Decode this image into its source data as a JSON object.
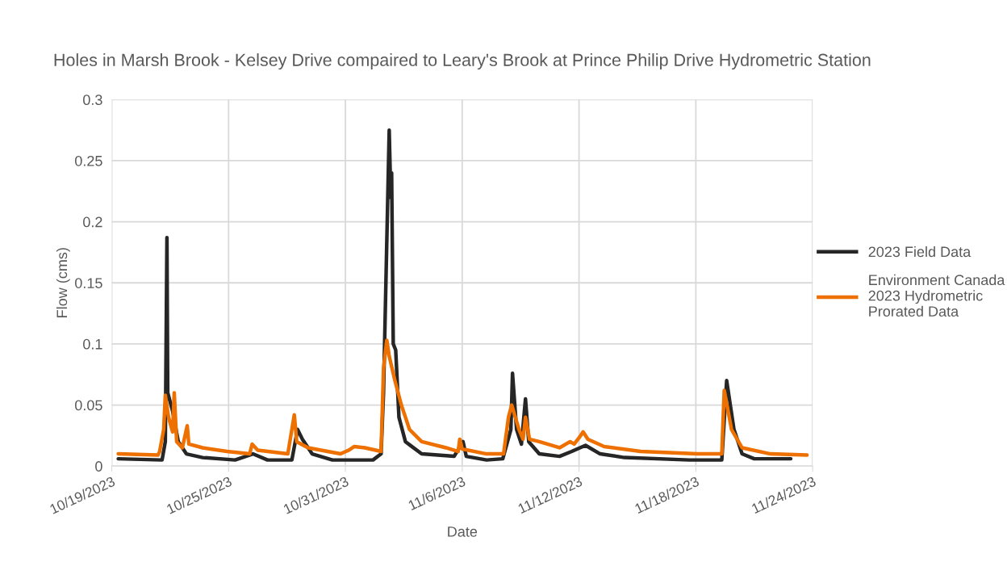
{
  "chart_data": {
    "type": "line",
    "title": "Holes in Marsh Brook - Kelsey Drive compaired to Leary's Brook at Prince Philip Drive Hydrometric Station",
    "xlabel": "Date",
    "ylabel": "Flow (cms)",
    "xlim": [
      "2023-10-19",
      "2023-11-24"
    ],
    "xticks": [
      {
        "value": "2023-10-19",
        "label": "10/19/2023"
      },
      {
        "value": "2023-10-25",
        "label": "10/25/2023"
      },
      {
        "value": "2023-10-31",
        "label": "10/31/2023"
      },
      {
        "value": "2023-11-06",
        "label": "11/6/2023"
      },
      {
        "value": "2023-11-12",
        "label": "11/12/2023"
      },
      {
        "value": "2023-11-18",
        "label": "11/18/2023"
      },
      {
        "value": "2023-11-24",
        "label": "11/24/2023"
      }
    ],
    "ylim": [
      0,
      0.3
    ],
    "yticks": [
      0,
      0.05,
      0.1,
      0.15,
      0.2,
      0.25,
      0.3
    ],
    "grid": true,
    "legend": "right",
    "series": [
      {
        "name": "2023 Field Data",
        "color": "#262626",
        "x": [
          "2023-10-19T08:00",
          "2023-10-21T14:00",
          "2023-10-21T18:00",
          "2023-10-21T20:00",
          "2023-10-21T21:00",
          "2023-10-22T03:00",
          "2023-10-22T10:00",
          "2023-10-22T20:00",
          "2023-10-23T16:00",
          "2023-10-25T08:00",
          "2023-10-26T06:00",
          "2023-10-27T00:00",
          "2023-10-28T06:00",
          "2023-10-28T13:00",
          "2023-10-28T19:00",
          "2023-10-29T07:00",
          "2023-10-30T08:00",
          "2023-11-01T10:00",
          "2023-11-01T20:00",
          "2023-11-01T23:00",
          "2023-11-02T06:00",
          "2023-11-02T08:00",
          "2023-11-02T09:00",
          "2023-11-02T11:00",
          "2023-11-02T14:00",
          "2023-11-02T18:00",
          "2023-11-03T02:00",
          "2023-11-03T22:00",
          "2023-11-05T14:00",
          "2023-11-06T01:00",
          "2023-11-06T05:00",
          "2023-11-07T06:00",
          "2023-11-08T02:00",
          "2023-11-08T12:00",
          "2023-11-08T14:00",
          "2023-11-08T19:00",
          "2023-11-09T01:00",
          "2023-11-09T06:00",
          "2023-11-09T10:00",
          "2023-11-09T23:00",
          "2023-11-11T00:00",
          "2023-11-11T15:00",
          "2023-11-12T08:00",
          "2023-11-13T02:00",
          "2023-11-14T08:00",
          "2023-11-17T16:00",
          "2023-11-19T08:00",
          "2023-11-19T14:00",
          "2023-11-19T23:00",
          "2023-11-20T09:00",
          "2023-11-21T00:00",
          "2023-11-22T21:00"
        ],
        "values": [
          0.006,
          0.005,
          0.02,
          0.187,
          0.06,
          0.045,
          0.02,
          0.01,
          0.007,
          0.005,
          0.01,
          0.005,
          0.005,
          0.03,
          0.022,
          0.01,
          0.005,
          0.005,
          0.01,
          0.06,
          0.275,
          0.22,
          0.24,
          0.1,
          0.095,
          0.04,
          0.02,
          0.01,
          0.008,
          0.02,
          0.008,
          0.005,
          0.006,
          0.03,
          0.076,
          0.03,
          0.018,
          0.055,
          0.02,
          0.01,
          0.008,
          0.012,
          0.017,
          0.01,
          0.007,
          0.005,
          0.005,
          0.07,
          0.03,
          0.01,
          0.006,
          0.006
        ]
      },
      {
        "name": "Environment Canada 2023 Hydrometric Prorated Data",
        "color": "#ed7000",
        "x": [
          "2023-10-19T08:00",
          "2023-10-21T09:00",
          "2023-10-21T11:00",
          "2023-10-21T16:00",
          "2023-10-21T18:00",
          "2023-10-21T22:00",
          "2023-10-22T03:00",
          "2023-10-22T05:00",
          "2023-10-22T08:00",
          "2023-10-22T15:00",
          "2023-10-22T21:00",
          "2023-10-22T23:00",
          "2023-10-23T16:00",
          "2023-10-24T22:00",
          "2023-10-26T02:00",
          "2023-10-26T05:00",
          "2023-10-26T12:00",
          "2023-10-28T01:00",
          "2023-10-28T09:00",
          "2023-10-28T12:00",
          "2023-10-29T02:00",
          "2023-10-30T18:00",
          "2023-10-31T04:00",
          "2023-10-31T11:00",
          "2023-11-01T00:00",
          "2023-11-01T20:00",
          "2023-11-01T23:00",
          "2023-11-02T03:00",
          "2023-11-02T06:00",
          "2023-11-02T13:00",
          "2023-11-02T21:00",
          "2023-11-03T07:00",
          "2023-11-03T22:00",
          "2023-11-05T04:00",
          "2023-11-05T19:00",
          "2023-11-05T21:00",
          "2023-11-06T00:00",
          "2023-11-07T06:00",
          "2023-11-08T03:00",
          "2023-11-08T09:00",
          "2023-11-08T13:00",
          "2023-11-08T22:00",
          "2023-11-09T03:00",
          "2023-11-09T06:00",
          "2023-11-09T11:00",
          "2023-11-09T23:00",
          "2023-11-11T00:00",
          "2023-11-11T13:00",
          "2023-11-11T18:00",
          "2023-11-12T01:00",
          "2023-11-12T05:00",
          "2023-11-12T11:00",
          "2023-11-13T07:00",
          "2023-11-15T04:00",
          "2023-11-18T02:00",
          "2023-11-19T08:00",
          "2023-11-19T11:00",
          "2023-11-19T20:00",
          "2023-11-20T09:00",
          "2023-11-21T20:00",
          "2023-11-23T17:00"
        ],
        "values": [
          0.01,
          0.009,
          0.012,
          0.03,
          0.058,
          0.04,
          0.028,
          0.06,
          0.02,
          0.015,
          0.033,
          0.018,
          0.015,
          0.012,
          0.01,
          0.018,
          0.013,
          0.01,
          0.042,
          0.02,
          0.015,
          0.01,
          0.013,
          0.016,
          0.015,
          0.012,
          0.08,
          0.103,
          0.09,
          0.07,
          0.05,
          0.03,
          0.02,
          0.015,
          0.012,
          0.022,
          0.014,
          0.01,
          0.01,
          0.04,
          0.05,
          0.03,
          0.022,
          0.04,
          0.022,
          0.02,
          0.015,
          0.02,
          0.018,
          0.024,
          0.028,
          0.022,
          0.016,
          0.012,
          0.01,
          0.01,
          0.062,
          0.03,
          0.015,
          0.01,
          0.009
        ]
      }
    ]
  }
}
